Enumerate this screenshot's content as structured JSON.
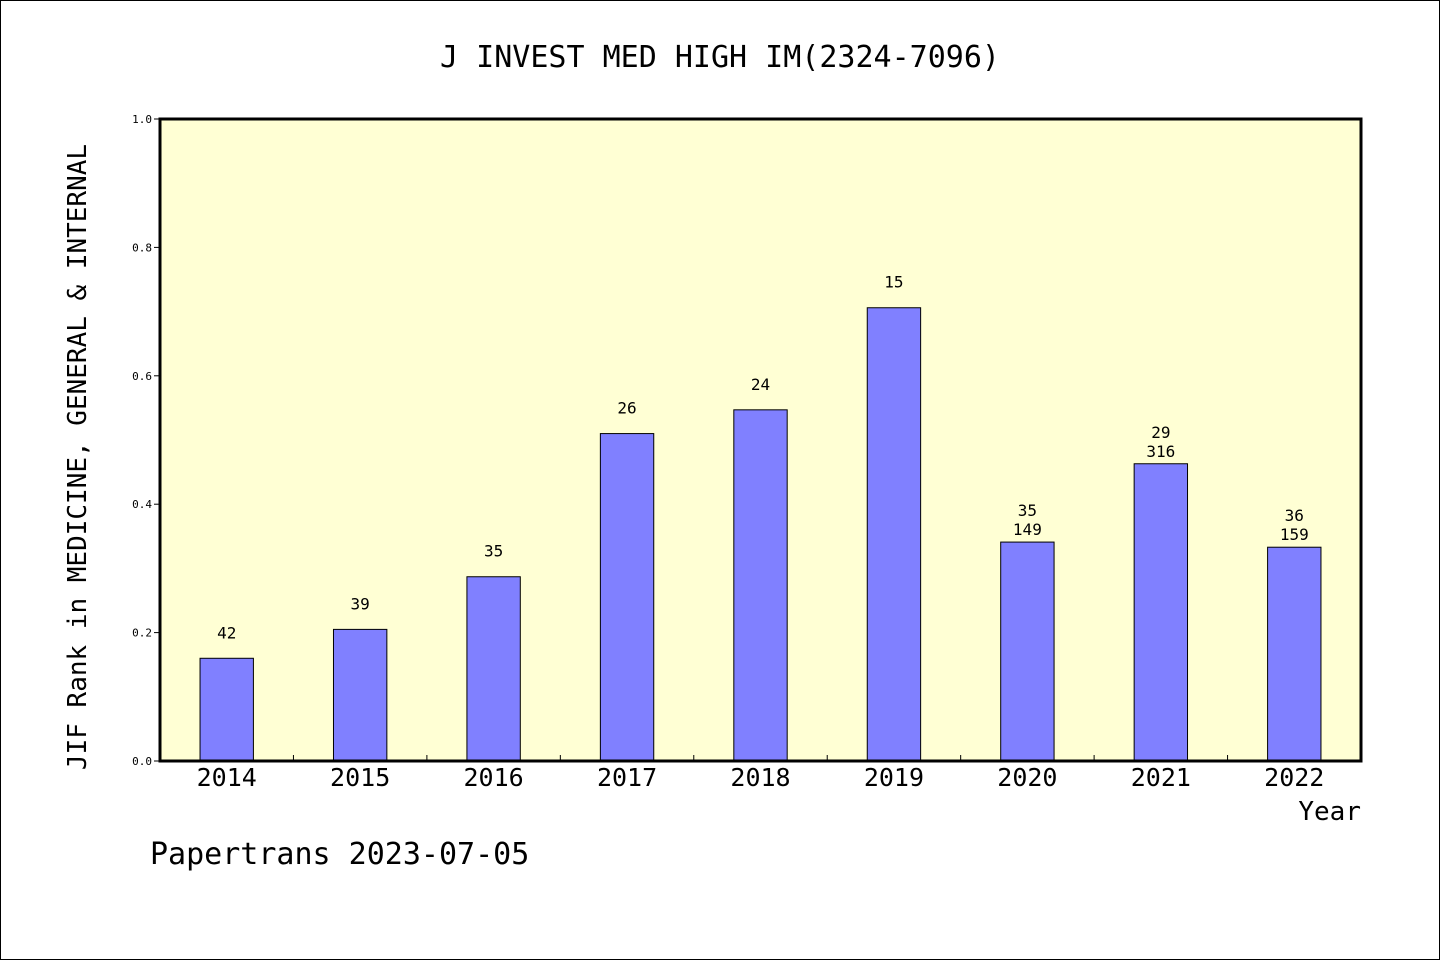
{
  "chart_data": {
    "type": "bar",
    "title": "J INVEST MED HIGH IM(2324-7096)",
    "xlabel": "Year",
    "ylabel": "JIF Rank in MEDICINE, GENERAL & INTERNAL",
    "ylim": [
      0,
      1.0
    ],
    "yticks": [
      "0.0",
      "0.2",
      "0.4",
      "0.6",
      "0.8",
      "1.0"
    ],
    "categories": [
      "2014",
      "2015",
      "2016",
      "2017",
      "2018",
      "2019",
      "2020",
      "2021",
      "2022"
    ],
    "values": [
      0.16,
      0.205,
      0.287,
      0.51,
      0.547,
      0.706,
      0.341,
      0.463,
      0.333
    ],
    "labels_top": [
      "",
      "",
      "",
      "",
      "",
      "",
      "35",
      "29",
      "36"
    ],
    "labels_bottom": [
      "42",
      "39",
      "35",
      "26",
      "24",
      "15",
      "149",
      "316",
      "159"
    ],
    "grid": false,
    "plot_background": "#ffffd4",
    "bar_color": "#8080ff"
  },
  "footer": {
    "credit": "Papertrans 2023-07-05"
  }
}
